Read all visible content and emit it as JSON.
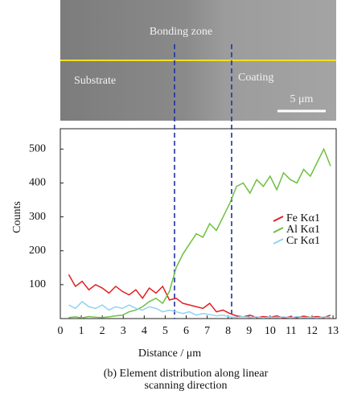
{
  "chart_data": {
    "type": "line",
    "image_labels": {
      "bonding": "Bonding zone",
      "substrate": "Substrate",
      "coating": "Coating",
      "scale": "5 μm"
    },
    "x_label": "Distance / μm",
    "y_label": "Counts",
    "caption": [
      "(b) Element distribution along linear",
      "scanning direction"
    ],
    "x": [
      0.4,
      0.72,
      1.04,
      1.36,
      1.68,
      2.0,
      2.32,
      2.64,
      2.96,
      3.28,
      3.6,
      3.92,
      4.24,
      4.56,
      4.88,
      5.2,
      5.52,
      5.84,
      6.16,
      6.48,
      6.8,
      7.12,
      7.44,
      7.76,
      8.08,
      8.4,
      8.72,
      9.04,
      9.36,
      9.68,
      10.0,
      10.32,
      10.64,
      10.96,
      11.28,
      11.6,
      11.92,
      12.24,
      12.56,
      12.88
    ],
    "series": [
      {
        "name": "Fe Kα1",
        "color": "#e02020",
        "values": [
          130,
          95,
          110,
          85,
          100,
          90,
          75,
          95,
          80,
          70,
          85,
          60,
          90,
          75,
          95,
          55,
          60,
          45,
          40,
          35,
          30,
          45,
          20,
          25,
          15,
          8,
          5,
          10,
          3,
          6,
          4,
          8,
          2,
          5,
          3,
          7,
          4,
          6,
          3,
          10
        ]
      },
      {
        "name": "Al Kα1",
        "color": "#6cc040",
        "values": [
          3,
          5,
          2,
          6,
          4,
          3,
          5,
          8,
          10,
          20,
          25,
          35,
          50,
          60,
          45,
          80,
          150,
          190,
          220,
          250,
          240,
          280,
          260,
          300,
          340,
          390,
          400,
          370,
          410,
          390,
          420,
          380,
          430,
          410,
          400,
          440,
          420,
          460,
          500,
          450
        ]
      },
      {
        "name": "Cr Kα1",
        "color": "#8fd3f0",
        "values": [
          40,
          30,
          50,
          35,
          30,
          40,
          25,
          35,
          30,
          40,
          30,
          25,
          35,
          30,
          20,
          25,
          20,
          15,
          20,
          10,
          15,
          12,
          8,
          10,
          5,
          4,
          6,
          3,
          5,
          2,
          4,
          3,
          5,
          2,
          6,
          3,
          4,
          2,
          5,
          3
        ]
      }
    ],
    "xlim": [
      0,
      13.15
    ],
    "ylim": [
      0,
      560
    ],
    "xticks": [
      0,
      1,
      2,
      3,
      4,
      5,
      6,
      7,
      8,
      9,
      10,
      11,
      12,
      13
    ],
    "yticks": [
      100,
      200,
      300,
      400,
      500
    ]
  }
}
